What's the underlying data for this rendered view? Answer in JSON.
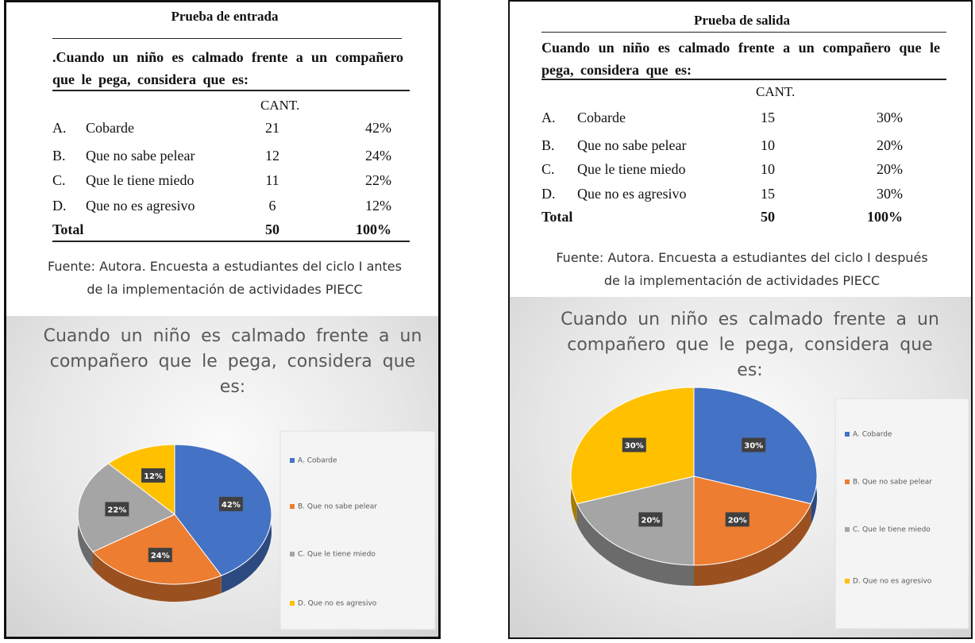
{
  "tables": [
    {
      "title": "Prueba de entrada",
      "question": ".Cuando un niño es calmado frente a un compañero que le pega, considera que es:",
      "header": "CANT.",
      "rows": [
        [
          "A.",
          "Cobarde",
          "21",
          "42%"
        ],
        [
          "B.",
          "Que no sabe pelear",
          "12",
          "24%"
        ],
        [
          "C.",
          "Que le tiene miedo",
          "11",
          "22%"
        ],
        [
          "D.",
          "Que no es agresivo",
          "6",
          "12%"
        ]
      ],
      "total": [
        "Total",
        "50",
        "100%"
      ],
      "source": "Fuente: Autora. Encuesta a estudiantes del ciclo I antes de la implementación de actividades PIECC"
    },
    {
      "title": "Prueba de salida",
      "question": "Cuando un niño es calmado frente a un compañero que le pega, considera que es:",
      "header": "CANT.",
      "rows": [
        [
          "A.",
          "Cobarde",
          "15",
          "30%"
        ],
        [
          "B.",
          "Que no sabe pelear",
          "10",
          "20%"
        ],
        [
          "C.",
          "Que le tiene miedo",
          "10",
          "20%"
        ],
        [
          "D.",
          "Que no es agresivo",
          "15",
          "30%"
        ]
      ],
      "total": [
        "Total",
        "50",
        "100%"
      ],
      "source": "Fuente: Autora. Encuesta a estudiantes del ciclo I después de la implementación de actividades PIECC"
    }
  ],
  "chart_data": [
    {
      "type": "pie",
      "title": "Cuando un niño es calmado frente a un compañero que le pega, considera que es:",
      "categories": [
        "A. Cobarde",
        "B. Que no sabe pelear",
        "C. Que le tiene miedo",
        "D. Que no es agresivo"
      ],
      "values": [
        42,
        24,
        22,
        12
      ],
      "value_labels": [
        "42%",
        "24%",
        "22%",
        "12%"
      ],
      "colors": [
        "#4472c4",
        "#ed7d31",
        "#a5a5a5",
        "#ffc000"
      ]
    },
    {
      "type": "pie",
      "title": "Cuando un niño es calmado frente a un compañero que le pega, considera que es:",
      "categories": [
        "A. Cobarde",
        "B. Que no sabe pelear",
        "C. Que le tiene miedo",
        "D. Que no es agresivo"
      ],
      "values": [
        30,
        20,
        20,
        30
      ],
      "value_labels": [
        "30%",
        "20%",
        "20%",
        "30%"
      ],
      "colors": [
        "#4472c4",
        "#ed7d31",
        "#a5a5a5",
        "#ffc000"
      ]
    }
  ]
}
